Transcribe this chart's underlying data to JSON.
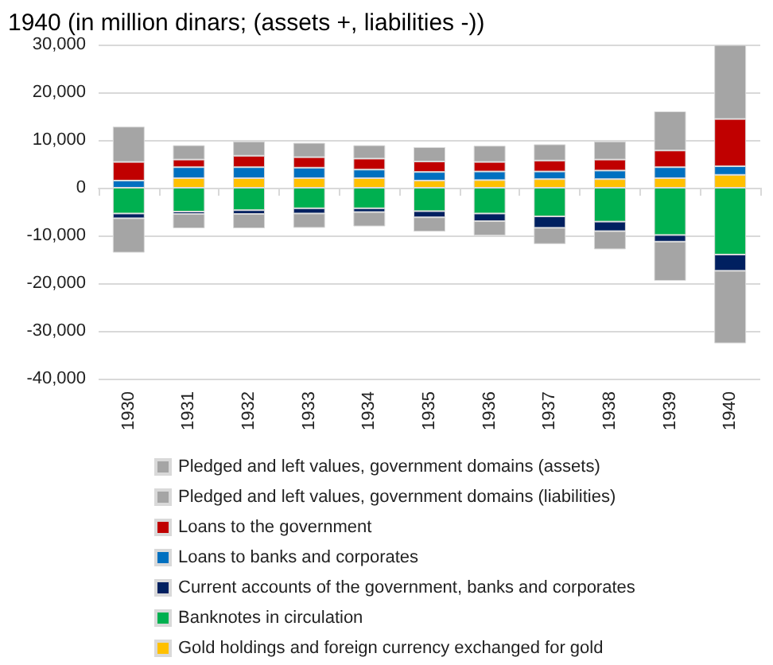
{
  "chart_data": {
    "type": "bar",
    "title": "1940 (in million dinars; (assets +, liabilities -))",
    "categories": [
      "1930",
      "1931",
      "1932",
      "1933",
      "1934",
      "1935",
      "1936",
      "1937",
      "1938",
      "1939",
      "1940"
    ],
    "stacked": true,
    "series": [
      {
        "name": "Gold holdings and foreign currency exchanged for gold",
        "color": "#ffc000",
        "values": [
          null,
          2000,
          2000,
          2000,
          2000,
          1500,
          1600,
          1800,
          1800,
          2000,
          2700
        ]
      },
      {
        "name": "Banknotes in circulation",
        "color": "#00b050",
        "values": [
          -5400,
          -5000,
          -4700,
          -4300,
          -4300,
          -4900,
          -5400,
          -6000,
          -7100,
          -9900,
          -14000
        ]
      },
      {
        "name": "Current accounts of the government, banks and corporates",
        "color": "#002060",
        "values": [
          -1000,
          -500,
          -800,
          -1100,
          -800,
          -1300,
          -1600,
          -2400,
          -2000,
          -1400,
          -3400
        ]
      },
      {
        "name": "Loans to banks and corporates",
        "color": "#0070c0",
        "values": [
          1500,
          2300,
          2300,
          2200,
          1800,
          1800,
          1800,
          1600,
          1800,
          2300,
          1800
        ]
      },
      {
        "name": "Loans to the government",
        "color": "#c00000",
        "values": [
          3900,
          1600,
          2400,
          2200,
          2300,
          2200,
          2000,
          2300,
          2300,
          3500,
          9900
        ]
      },
      {
        "name": "Pledged and left values, government domains (liabilities)",
        "color": "#a5a5a5",
        "values": [
          -7200,
          -3000,
          -3000,
          -3000,
          -3000,
          -3000,
          -3000,
          -3400,
          -3800,
          -8200,
          -15200
        ]
      },
      {
        "name": "Pledged and left values, government domains (assets)",
        "color": "#a5a5a5",
        "values": [
          7400,
          3000,
          3000,
          3000,
          2800,
          3000,
          3400,
          3400,
          3800,
          8200,
          15500
        ]
      }
    ],
    "ylim": [
      -40000,
      30000
    ],
    "yticks": [
      {
        "value": -40000,
        "label": "-40,000"
      },
      {
        "value": -30000,
        "label": "-30,000"
      },
      {
        "value": -20000,
        "label": "-20,000"
      },
      {
        "value": -10000,
        "label": "-10,000"
      },
      {
        "value": 0,
        "label": "0"
      },
      {
        "value": 10000,
        "label": "10,000"
      },
      {
        "value": 20000,
        "label": "20,000"
      },
      {
        "value": 30000,
        "label": "30,000"
      }
    ],
    "grid": "y",
    "legend": "bottom"
  }
}
